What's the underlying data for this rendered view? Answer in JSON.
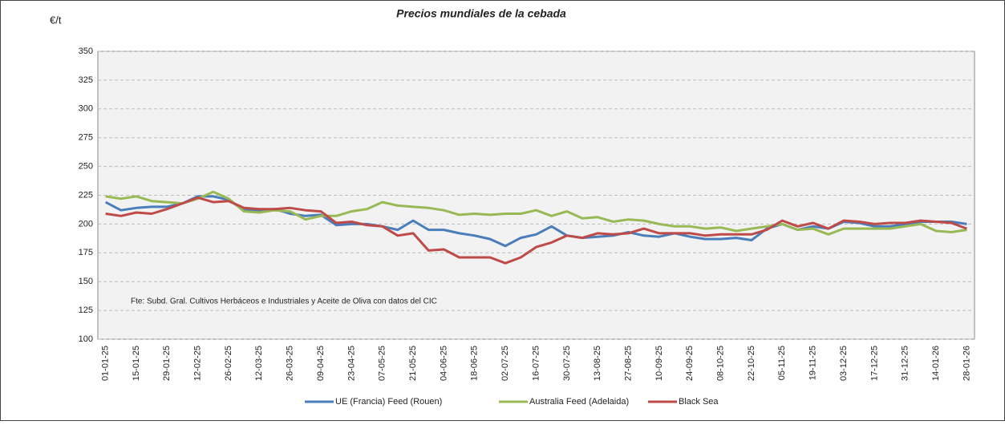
{
  "chart_data": {
    "type": "line",
    "title": "Precios mundiales de la cebada",
    "y_label": "€/t",
    "annotation": "Fte: Subd. Gral. Cultivos Herbáceos e Industriales y Aceite de Oliva con datos del CIC",
    "categories": [
      "01-01-25",
      null,
      "15-01-25",
      null,
      "29-01-25",
      null,
      "12-02-25",
      null,
      "26-02-25",
      null,
      "12-03-25",
      null,
      "26-03-25",
      null,
      "09-04-25",
      null,
      "23-04-25",
      null,
      "07-05-25",
      null,
      "21-05-25",
      null,
      "04-06-25",
      null,
      "18-06-25",
      null,
      "02-07-25",
      null,
      "16-07-25",
      null,
      "30-07-25",
      null,
      "13-08-25",
      null,
      "27-08-25",
      null,
      "10-09-25",
      null,
      "24-09-25",
      null,
      "08-10-25",
      null,
      "22-10-25",
      null,
      "05-11-25",
      null,
      "19-11-25",
      null,
      "03-12-25",
      null,
      "17-12-25",
      null,
      "31-12-25",
      null,
      "14-01-26",
      null,
      "28-01-26"
    ],
    "series": [
      {
        "name": "UE (Francia) Feed (Rouen)",
        "color": "#4a7ebb",
        "values": [
          219,
          212,
          214,
          215,
          215,
          218,
          224,
          224,
          221,
          212,
          212,
          213,
          209,
          207,
          208,
          199,
          200,
          200,
          198,
          195,
          203,
          195,
          195,
          192,
          190,
          187,
          181,
          188,
          191,
          198,
          190,
          188,
          189,
          190,
          193,
          190,
          189,
          192,
          189,
          187,
          187,
          188,
          186,
          196,
          200,
          195,
          198,
          196,
          202,
          201,
          198,
          198,
          200,
          202,
          202,
          202,
          200
        ]
      },
      {
        "name": "Australia Feed (Adelaida)",
        "color": "#98b954",
        "values": [
          224,
          222,
          224,
          220,
          219,
          218,
          222,
          228,
          222,
          211,
          210,
          212,
          211,
          204,
          207,
          207,
          211,
          213,
          219,
          216,
          215,
          214,
          212,
          208,
          209,
          208,
          209,
          209,
          212,
          207,
          211,
          205,
          206,
          202,
          204,
          203,
          200,
          198,
          198,
          196,
          197,
          194,
          196,
          198,
          200,
          195,
          196,
          191,
          196,
          196,
          196,
          196,
          198,
          200,
          194,
          193,
          195
        ]
      },
      {
        "name": "Black Sea",
        "color": "#be4b48",
        "values": [
          209,
          207,
          210,
          209,
          213,
          218,
          223,
          219,
          220,
          214,
          213,
          213,
          214,
          212,
          211,
          201,
          202,
          199,
          198,
          190,
          192,
          177,
          178,
          171,
          171,
          171,
          166,
          171,
          180,
          184,
          190,
          188,
          192,
          191,
          192,
          196,
          192,
          192,
          192,
          190,
          191,
          191,
          191,
          195,
          203,
          198,
          201,
          196,
          203,
          202,
          200,
          201,
          201,
          203,
          202,
          201,
          196
        ]
      }
    ],
    "ylim": [
      100,
      350
    ],
    "yticks": [
      100,
      125,
      150,
      175,
      200,
      225,
      250,
      275,
      300,
      325,
      350
    ],
    "grid": true
  }
}
